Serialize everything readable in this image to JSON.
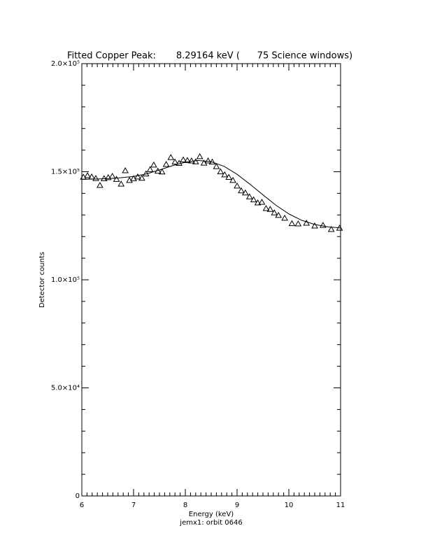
{
  "chart_data": {
    "type": "scatter",
    "title": "Fitted Copper Peak:       8.29164 keV (      75 Science windows)",
    "x_label": "Energy (keV)",
    "subtitle": "jemx1: orbit 0646",
    "y_label": "Detector counts",
    "xlim": [
      6,
      11
    ],
    "xticks": [
      6,
      7,
      8,
      9,
      10,
      11
    ],
    "ylim": [
      0,
      200000
    ],
    "yticks": [
      0,
      {
        "value": 50000,
        "label": "5.0×10⁴"
      },
      {
        "value": 100000,
        "label": "1.0×10⁵"
      },
      {
        "value": 150000,
        "label": "1.5×10⁵"
      },
      {
        "value": 200000,
        "label": "2.0×10⁵"
      }
    ],
    "color": "#000000",
    "x": [
      6.03,
      6.11,
      6.19,
      6.27,
      6.35,
      6.43,
      6.51,
      6.59,
      6.67,
      6.76,
      6.84,
      6.92,
      7.0,
      7.08,
      7.16,
      7.24,
      7.32,
      7.39,
      7.47,
      7.55,
      7.63,
      7.72,
      7.8,
      7.88,
      7.96,
      8.04,
      8.12,
      8.2,
      8.28,
      8.36,
      8.44,
      8.52,
      8.6,
      8.68,
      8.76,
      8.84,
      8.92,
      9.0,
      9.08,
      9.16,
      9.24,
      9.32,
      9.4,
      9.48,
      9.56,
      9.64,
      9.72,
      9.8,
      9.92,
      10.06,
      10.18,
      10.34,
      10.5,
      10.66,
      10.82,
      10.98
    ],
    "values": [
      147500,
      148200,
      147600,
      146900,
      143700,
      146800,
      147300,
      147900,
      146500,
      144300,
      150500,
      146000,
      146800,
      147600,
      147000,
      149000,
      151000,
      153100,
      150300,
      149900,
      153400,
      156600,
      154500,
      153900,
      155500,
      155200,
      155000,
      154600,
      157000,
      154000,
      155000,
      154500,
      152400,
      150000,
      148600,
      147400,
      146000,
      143400,
      141200,
      140200,
      138400,
      137000,
      135600,
      135900,
      133000,
      132600,
      131000,
      129800,
      128500,
      126000,
      125900,
      126200,
      124900,
      125200,
      123300,
      123900
    ],
    "fit": {
      "type": "line",
      "color": "#000000",
      "x": [
        6.0,
        6.25,
        6.5,
        6.75,
        7.0,
        7.25,
        7.5,
        7.75,
        8.0,
        8.25,
        8.5,
        8.75,
        9.0,
        9.25,
        9.5,
        9.75,
        10.0,
        10.25,
        10.5,
        10.75,
        11.0
      ],
      "values": [
        146500,
        146600,
        146800,
        147200,
        147800,
        149000,
        150800,
        152800,
        154400,
        155200,
        154600,
        152500,
        148800,
        144200,
        139300,
        134500,
        130500,
        127500,
        125600,
        124500,
        124000
      ]
    }
  }
}
